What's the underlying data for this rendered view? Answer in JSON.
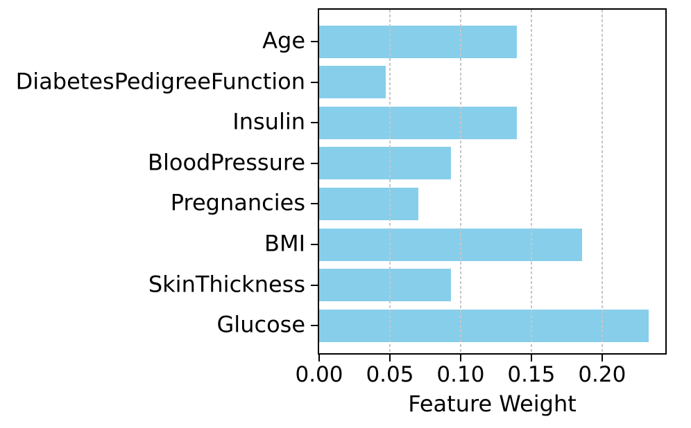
{
  "figure": {
    "background": "#ffffff",
    "spine_color": "#000000",
    "text_color": "#000000"
  },
  "chart_data": {
    "type": "bar",
    "orientation": "horizontal",
    "title": "",
    "xlabel": "Feature Weight",
    "ylabel": "",
    "categories": [
      "Age",
      "DiabetesPedigreeFunction",
      "Insulin",
      "BloodPressure",
      "Pregnancies",
      "BMI",
      "SkinThickness",
      "Glucose"
    ],
    "values": [
      0.14,
      0.047,
      0.14,
      0.093,
      0.07,
      0.186,
      0.093,
      0.233
    ],
    "bar_color": "#87CEEB",
    "xlim": [
      0,
      0.2447
    ],
    "xticks": [
      {
        "value": 0.0,
        "label": "0.00"
      },
      {
        "value": 0.05,
        "label": "0.05"
      },
      {
        "value": 0.1,
        "label": "0.10"
      },
      {
        "value": 0.15,
        "label": "0.15"
      },
      {
        "value": 0.2,
        "label": "0.20"
      }
    ],
    "grid": {
      "axis": "x",
      "linestyle": "dashed",
      "color": "#c6c6c6",
      "drawn_above_bars": true
    },
    "legend": null
  }
}
